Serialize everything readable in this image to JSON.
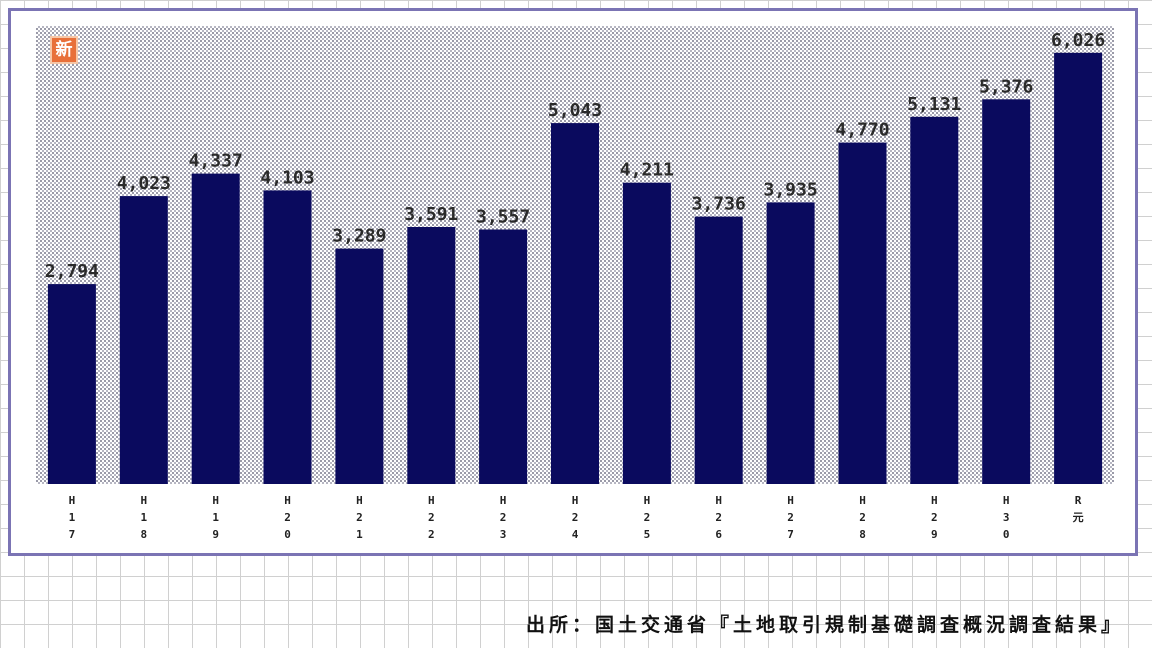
{
  "badge": {
    "text": "新"
  },
  "source_note": "出所：国土交通省『土地取引規制基礎調査概況調査結果』",
  "colors": {
    "bar": "#0a0a5e",
    "frame": "#7b74b4",
    "badge": "#e8703a",
    "plot_dots": "#9a9aa8"
  },
  "chart_data": {
    "type": "bar",
    "title": "",
    "xlabel": "",
    "ylabel": "",
    "grid": false,
    "legend": "none",
    "ylim": [
      0,
      6400
    ],
    "categories": [
      "H17",
      "H18",
      "H19",
      "H20",
      "H21",
      "H22",
      "H23",
      "H24",
      "H25",
      "H26",
      "H27",
      "H28",
      "H29",
      "H30",
      "R元"
    ],
    "values": [
      2794,
      4023,
      4337,
      4103,
      3289,
      3591,
      3557,
      5043,
      4211,
      3736,
      3935,
      4770,
      5131,
      5376,
      6026
    ],
    "value_labels": [
      "2,794",
      "4,023",
      "4,337",
      "4,103",
      "3,289",
      "3,591",
      "3,557",
      "5,043",
      "4,211",
      "3,736",
      "3,935",
      "4,770",
      "5,131",
      "5,376",
      "6,026"
    ]
  }
}
